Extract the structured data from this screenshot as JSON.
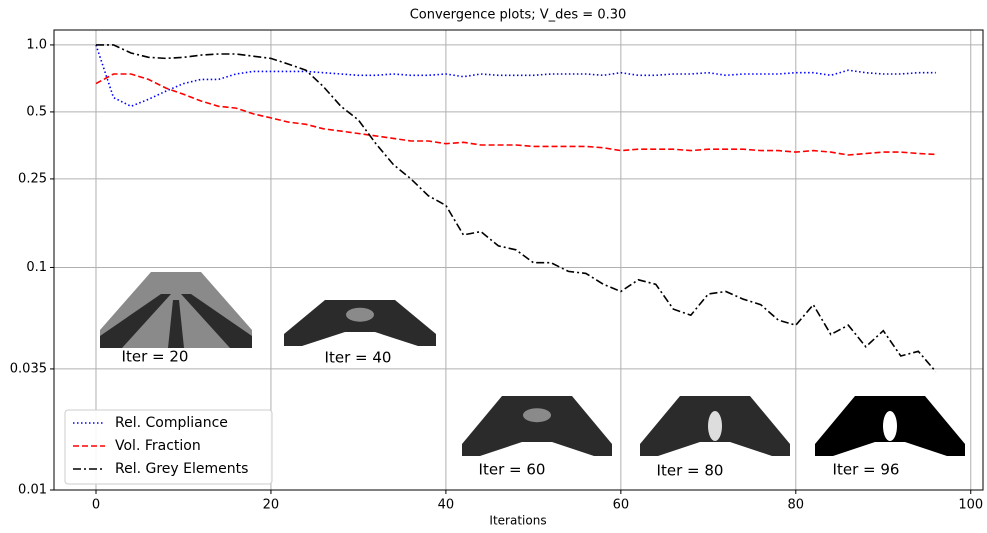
{
  "chart_data": {
    "type": "line",
    "title": "Convergence plots; V_des = 0.30",
    "x_label": "Iterations",
    "log_y": true,
    "grid": true,
    "legend": "lower left",
    "x": [
      0,
      2,
      4,
      6,
      8,
      10,
      12,
      14,
      16,
      18,
      20,
      22,
      24,
      26,
      28,
      30,
      32,
      34,
      36,
      38,
      40,
      42,
      44,
      46,
      48,
      50,
      52,
      54,
      56,
      58,
      60,
      62,
      64,
      66,
      68,
      70,
      72,
      74,
      76,
      78,
      80,
      82,
      84,
      86,
      88,
      90,
      92,
      94,
      96
    ],
    "series": [
      {
        "name": "Rel. Compliance",
        "color": "#0000ff",
        "linestyle": "dotted",
        "values": [
          1.0,
          0.58,
          0.53,
          0.57,
          0.62,
          0.67,
          0.7,
          0.7,
          0.74,
          0.76,
          0.76,
          0.76,
          0.76,
          0.75,
          0.74,
          0.73,
          0.73,
          0.74,
          0.73,
          0.73,
          0.74,
          0.72,
          0.74,
          0.73,
          0.73,
          0.73,
          0.74,
          0.74,
          0.74,
          0.73,
          0.75,
          0.73,
          0.73,
          0.74,
          0.74,
          0.75,
          0.73,
          0.74,
          0.74,
          0.74,
          0.75,
          0.75,
          0.73,
          0.77,
          0.75,
          0.74,
          0.74,
          0.75,
          0.75
        ]
      },
      {
        "name": "Vol. Fraction",
        "color": "#ff0000",
        "linestyle": "dashed",
        "values": [
          0.67,
          0.74,
          0.74,
          0.7,
          0.64,
          0.6,
          0.56,
          0.53,
          0.52,
          0.49,
          0.47,
          0.45,
          0.44,
          0.42,
          0.41,
          0.4,
          0.39,
          0.38,
          0.37,
          0.37,
          0.36,
          0.365,
          0.355,
          0.355,
          0.355,
          0.35,
          0.35,
          0.35,
          0.35,
          0.345,
          0.335,
          0.34,
          0.34,
          0.34,
          0.335,
          0.34,
          0.34,
          0.34,
          0.335,
          0.335,
          0.33,
          0.335,
          0.33,
          0.32,
          0.325,
          0.33,
          0.33,
          0.325,
          0.322
        ]
      },
      {
        "name": "Rel. Grey Elements",
        "color": "#000000",
        "linestyle": "dashdot",
        "values": [
          1.0,
          1.0,
          0.92,
          0.88,
          0.87,
          0.88,
          0.9,
          0.91,
          0.91,
          0.89,
          0.87,
          0.82,
          0.77,
          0.65,
          0.53,
          0.46,
          0.36,
          0.29,
          0.25,
          0.21,
          0.19,
          0.14,
          0.145,
          0.125,
          0.12,
          0.105,
          0.105,
          0.096,
          0.094,
          0.084,
          0.078,
          0.088,
          0.084,
          0.065,
          0.061,
          0.076,
          0.078,
          0.072,
          0.068,
          0.058,
          0.055,
          0.068,
          0.05,
          0.055,
          0.044,
          0.052,
          0.04,
          0.042,
          0.034
        ]
      }
    ],
    "xlim": [
      -4.8,
      101.4
    ],
    "xticks": [
      0,
      20,
      40,
      60,
      80,
      100
    ],
    "ylim": [
      0.01,
      1.167
    ],
    "yticks": [
      0.01,
      0.035,
      0.1,
      0.25,
      0.5,
      {
        "value": 1,
        "label": "1.0"
      }
    ],
    "annotations": [
      "Iter = 20",
      "Iter = 40",
      "Iter = 60",
      "Iter = 80",
      "Iter = 96"
    ]
  }
}
